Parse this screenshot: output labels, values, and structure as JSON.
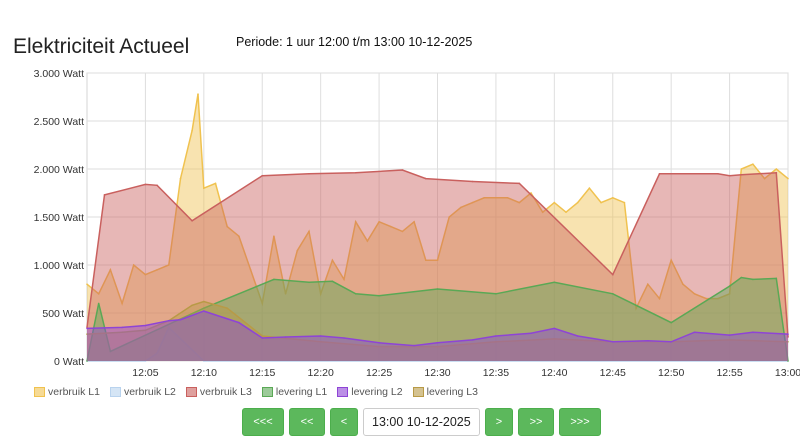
{
  "page": {
    "title": "Elektriciteit Actueel",
    "period": "Periode: 1 uur 12:00 t/m 13:00 10-12-2025"
  },
  "navigation": {
    "first": "<<<",
    "back_more": "<<",
    "back": "<",
    "date_value": "13:00 10-12-2025",
    "forward": ">",
    "forward_more": ">>",
    "last": ">>>"
  },
  "chart_data": {
    "type": "area",
    "title": "",
    "xlabel": "",
    "ylabel": "",
    "x_range": [
      "12:00",
      "13:00"
    ],
    "ylim": [
      0,
      3000
    ],
    "y_unit": "Watt",
    "yticks": [
      "0 Watt",
      "500 Watt",
      "1.000 Watt",
      "1.500 Watt",
      "2.000 Watt",
      "2.500 Watt",
      "3.000 Watt"
    ],
    "xticks": [
      "12:05",
      "12:10",
      "12:15",
      "12:20",
      "12:25",
      "12:30",
      "12:35",
      "12:40",
      "12:45",
      "12:50",
      "12:55",
      "13:00"
    ],
    "grid": true,
    "legend_position": "bottom-left",
    "series": [
      {
        "name": "verbruik L1",
        "color": "#f0c24f",
        "x": [
          "12:00",
          "12:01",
          "12:02",
          "12:03",
          "12:04",
          "12:05",
          "12:06",
          "12:07",
          "12:08",
          "12:09",
          "12:09.5",
          "12:10",
          "12:11",
          "12:12",
          "12:13",
          "12:14",
          "12:15",
          "12:16",
          "12:17",
          "12:18",
          "12:19",
          "12:20",
          "12:21",
          "12:22",
          "12:23",
          "12:24",
          "12:25",
          "12:26",
          "12:27",
          "12:28",
          "12:29",
          "12:30",
          "12:31",
          "12:32",
          "12:33",
          "12:34",
          "12:35",
          "12:36",
          "12:37",
          "12:38",
          "12:39",
          "12:40",
          "12:41",
          "12:42",
          "12:43",
          "12:44",
          "12:45",
          "12:46",
          "12:47",
          "12:48",
          "12:49",
          "12:50",
          "12:51",
          "12:52",
          "12:53",
          "12:54",
          "12:55",
          "12:56",
          "12:57",
          "12:58",
          "12:59",
          "13:00"
        ],
        "values": [
          800,
          700,
          950,
          600,
          1000,
          900,
          950,
          1000,
          1900,
          2400,
          2780,
          1800,
          1850,
          1400,
          1300,
          950,
          600,
          1300,
          700,
          1150,
          1350,
          700,
          1050,
          850,
          1450,
          1250,
          1450,
          1400,
          1350,
          1450,
          1050,
          1050,
          1500,
          1600,
          1650,
          1700,
          1700,
          1700,
          1650,
          1750,
          1550,
          1650,
          1550,
          1650,
          1800,
          1650,
          1700,
          1650,
          550,
          800,
          650,
          1050,
          800,
          700,
          650,
          650,
          700,
          2000,
          2050,
          1900,
          2000,
          1900
        ]
      },
      {
        "name": "verbruik L2",
        "color": "#b9d3ee",
        "x": [
          "12:00",
          "12:05",
          "12:06",
          "12:07",
          "12:10",
          "12:15",
          "13:00"
        ],
        "values": [
          0,
          0,
          80,
          350,
          0,
          0,
          0
        ]
      },
      {
        "name": "verbruik L3",
        "color": "#c9605e",
        "x": [
          "12:00",
          "12:01.5",
          "12:05",
          "12:06",
          "12:09",
          "12:15",
          "12:19",
          "12:23",
          "12:27",
          "12:29",
          "12:33",
          "12:37",
          "12:45",
          "12:49",
          "12:54",
          "12:55",
          "12:56",
          "12:59",
          "13:00"
        ],
        "values": [
          350,
          1730,
          1840,
          1830,
          1460,
          1930,
          1950,
          1960,
          1990,
          1900,
          1870,
          1850,
          900,
          1950,
          1950,
          1930,
          1940,
          1960,
          250
        ]
      },
      {
        "name": "levering L1",
        "color": "#5aa855",
        "x": [
          "12:00",
          "12:01",
          "12:02",
          "12:10",
          "12:16",
          "12:19",
          "12:21",
          "12:23",
          "12:25",
          "12:30",
          "12:35",
          "12:40",
          "12:45",
          "12:50",
          "12:55",
          "12:56",
          "12:57",
          "12:59",
          "13:00"
        ],
        "values": [
          0,
          600,
          100,
          550,
          850,
          820,
          830,
          700,
          680,
          750,
          700,
          820,
          700,
          400,
          780,
          870,
          850,
          860,
          0
        ]
      },
      {
        "name": "levering L2",
        "color": "#8e44d6",
        "x": [
          "12:00",
          "12:03",
          "12:05",
          "12:07",
          "12:08",
          "12:10",
          "12:13",
          "12:15",
          "12:17",
          "12:20",
          "12:22",
          "12:25",
          "12:28",
          "12:30",
          "12:33",
          "12:35",
          "12:38",
          "12:40",
          "12:42",
          "12:45",
          "12:48",
          "12:50",
          "12:52",
          "12:55",
          "12:57",
          "13:00"
        ],
        "values": [
          340,
          350,
          370,
          420,
          430,
          520,
          400,
          240,
          250,
          260,
          240,
          190,
          160,
          190,
          220,
          260,
          290,
          340,
          260,
          200,
          210,
          200,
          300,
          270,
          300,
          280
        ]
      },
      {
        "name": "levering L3",
        "color": "#b89a46",
        "x": [
          "12:00",
          "12:03",
          "12:05",
          "12:07",
          "12:09",
          "12:10",
          "12:12",
          "12:15",
          "12:20",
          "12:25",
          "12:30",
          "12:35",
          "12:40",
          "12:45",
          "12:50",
          "12:55",
          "13:00"
        ],
        "values": [
          280,
          300,
          320,
          420,
          580,
          620,
          550,
          260,
          200,
          150,
          150,
          200,
          230,
          200,
          200,
          220,
          200
        ]
      }
    ]
  }
}
